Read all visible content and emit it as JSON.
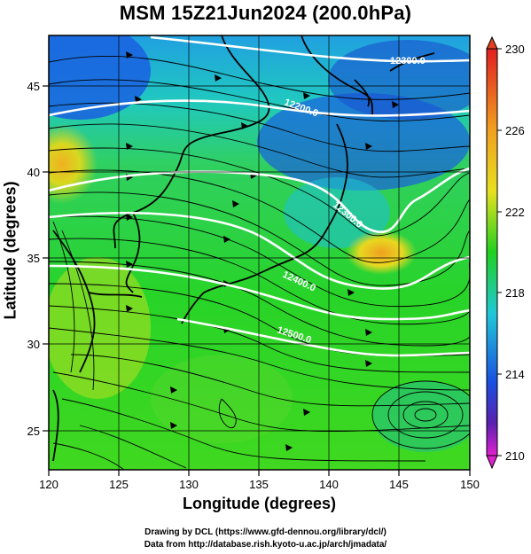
{
  "title": "MSM 15Z21Jun2024 (200.0hPa)",
  "x_axis": {
    "label": "Longitude (degrees)",
    "ticks": [
      120,
      125,
      130,
      135,
      140,
      145,
      150
    ]
  },
  "y_axis": {
    "label": "Latitude  (degrees)",
    "ticks": [
      25,
      30,
      35,
      40,
      45
    ]
  },
  "colorbar": {
    "ticks": [
      230,
      226,
      222,
      218,
      214,
      210
    ]
  },
  "contour_labels": [
    "12300.0",
    "12200.0",
    "12300.0",
    "12400.0",
    "12500.0"
  ],
  "credits": [
    "Drawing by DCL (https://www.gfd-dennou.org/library/dcl/)",
    "Data from http://database.rish.kyoto-u.ac.jp/arch/jmadata/"
  ],
  "colors": {
    "blue": "#1a4fd8",
    "cyan": "#20c8d8",
    "green": "#22d020",
    "yellow": "#e8e020",
    "orange": "#f09020",
    "red": "#e02020",
    "magenta": "#e020d0"
  }
}
